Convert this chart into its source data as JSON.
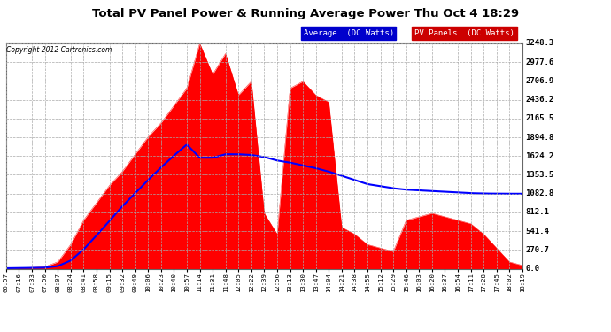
{
  "title": "Total PV Panel Power & Running Average Power Thu Oct 4 18:29",
  "copyright": "Copyright 2012 Cartronics.com",
  "ylabel_right_ticks": [
    0.0,
    270.7,
    541.4,
    812.1,
    1082.8,
    1353.5,
    1624.2,
    1894.8,
    2165.5,
    2436.2,
    2706.9,
    2977.6,
    3248.3
  ],
  "ymax": 3248.3,
  "ymin": 0.0,
  "xtick_labels": [
    "06:57",
    "07:16",
    "07:33",
    "07:50",
    "08:07",
    "08:24",
    "08:41",
    "08:58",
    "09:15",
    "09:32",
    "09:49",
    "10:06",
    "10:23",
    "10:40",
    "10:57",
    "11:14",
    "11:31",
    "11:48",
    "12:05",
    "12:22",
    "12:39",
    "12:56",
    "13:13",
    "13:30",
    "13:47",
    "14:04",
    "14:21",
    "14:38",
    "14:55",
    "15:12",
    "15:29",
    "15:46",
    "16:03",
    "16:20",
    "16:37",
    "16:54",
    "17:11",
    "17:28",
    "17:45",
    "18:02",
    "18:19"
  ],
  "plot_bg_color": "#ffffff",
  "grid_color": "#aaaaaa",
  "pv_color": "#ff0000",
  "avg_color": "#0000ff",
  "fig_bg": "#ffffff",
  "legend_avg_bg": "#0000cc",
  "legend_pv_bg": "#cc0000",
  "pv_data": [
    10,
    15,
    20,
    30,
    100,
    350,
    700,
    950,
    1200,
    1400,
    1650,
    1900,
    2100,
    2350,
    2600,
    3248,
    2800,
    3100,
    2500,
    2700,
    800,
    500,
    2600,
    2700,
    2500,
    2400,
    600,
    500,
    350,
    300,
    250,
    700,
    750,
    800,
    750,
    700,
    650,
    500,
    300,
    100,
    50
  ],
  "avg_data": [
    10,
    12,
    15,
    18,
    40,
    120,
    280,
    480,
    690,
    900,
    1090,
    1280,
    1460,
    1630,
    1790,
    1600,
    1600,
    1650,
    1650,
    1640,
    1610,
    1560,
    1530,
    1490,
    1450,
    1400,
    1340,
    1280,
    1220,
    1190,
    1160,
    1140,
    1130,
    1120,
    1110,
    1100,
    1090,
    1085,
    1083,
    1082,
    1082
  ]
}
